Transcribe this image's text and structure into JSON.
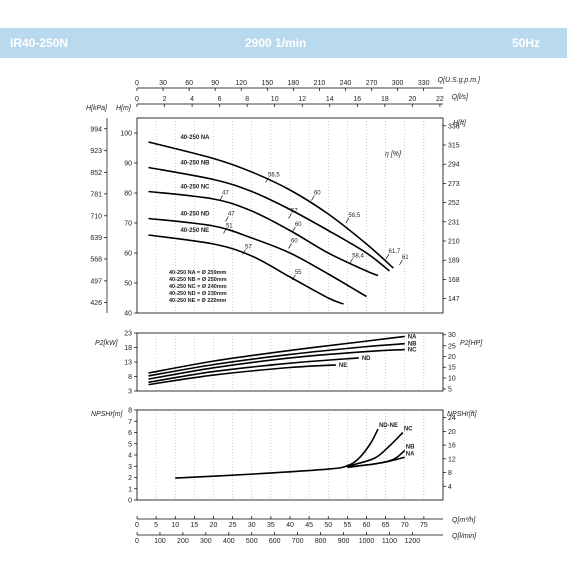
{
  "header": {
    "model": "IR40-250N",
    "speed": "2900 1/min",
    "frequency": "50Hz"
  },
  "chart_data": [
    {
      "type": "line",
      "name": "head-curves",
      "units": {
        "q_m3h": "Q[m³/h]",
        "q_lmin": "Q[l/min]",
        "q_lps": "Q[l/s]",
        "q_gpm": "Q[U.S.g.p.m.]",
        "h_m": "H[m]",
        "h_kpa": "H[kPa]",
        "h_ft": "H[ft]",
        "eta": "η [%]"
      },
      "xlim": [
        0,
        80
      ],
      "ylim": [
        40,
        105
      ],
      "top_axes": {
        "gpm": {
          "ticks": [
            "0",
            "30",
            "60",
            "90",
            "120",
            "150",
            "180",
            "210",
            "240",
            "270",
            "300",
            "330"
          ],
          "start": 0,
          "step": 30
        },
        "lps": {
          "ticks": [
            "0",
            "2",
            "4",
            "6",
            "8",
            "10",
            "12",
            "14",
            "16",
            "18",
            "20",
            "22"
          ],
          "start": 0,
          "step": 2
        }
      },
      "left_axes": {
        "m": [
          "40",
          "50",
          "60",
          "70",
          "80",
          "90",
          "100"
        ],
        "kpa": [
          {
            "label": "426",
            "m": 43.5
          },
          {
            "label": "497",
            "m": 50.7
          },
          {
            "label": "568",
            "m": 58
          },
          {
            "label": "639",
            "m": 65.2
          },
          {
            "label": "710",
            "m": 72.4
          },
          {
            "label": "781",
            "m": 79.7
          },
          {
            "label": "852",
            "m": 86.9
          },
          {
            "label": "923",
            "m": 94.1
          },
          {
            "label": "994",
            "m": 101.4
          }
        ]
      },
      "right_axis_ft": [
        {
          "label": "147",
          "m": 44.8
        },
        {
          "label": "168",
          "m": 51.2
        },
        {
          "label": "189",
          "m": 57.6
        },
        {
          "label": "210",
          "m": 64
        },
        {
          "label": "231",
          "m": 70.4
        },
        {
          "label": "252",
          "m": 76.8
        },
        {
          "label": "273",
          "m": 83.2
        },
        {
          "label": "294",
          "m": 89.6
        },
        {
          "label": "315",
          "m": 96
        },
        {
          "label": "336",
          "m": 102.4
        }
      ],
      "series": [
        {
          "name": "40-250 NA",
          "color": "#000000",
          "points": [
            [
              3,
              97
            ],
            [
              20,
              91.5
            ],
            [
              30,
              87
            ],
            [
              40,
              81
            ],
            [
              50,
              73
            ],
            [
              60,
              63
            ],
            [
              67,
              55
            ]
          ]
        },
        {
          "name": "40-250 NB",
          "color": "#000000",
          "points": [
            [
              3,
              88.5
            ],
            [
              20,
              84.5
            ],
            [
              30,
              80.5
            ],
            [
              40,
              74.5
            ],
            [
              50,
              67.5
            ],
            [
              60,
              60
            ],
            [
              66,
              54
            ]
          ]
        },
        {
          "name": "40-250 NC",
          "color": "#000000",
          "points": [
            [
              3,
              80.5
            ],
            [
              20,
              78
            ],
            [
              30,
              74
            ],
            [
              40,
              67.5
            ],
            [
              50,
              60
            ],
            [
              60,
              54
            ],
            [
              63,
              52.5
            ]
          ]
        },
        {
          "name": "40-250 ND",
          "color": "#000000",
          "points": [
            [
              3,
              71.5
            ],
            [
              20,
              69
            ],
            [
              30,
              65
            ],
            [
              40,
              60
            ],
            [
              50,
              53
            ],
            [
              58,
              47
            ],
            [
              60,
              45.5
            ]
          ]
        },
        {
          "name": "40-250 NE",
          "color": "#000000",
          "points": [
            [
              3,
              66
            ],
            [
              20,
              63
            ],
            [
              30,
              59
            ],
            [
              40,
              52
            ],
            [
              50,
              45
            ],
            [
              54,
              43
            ]
          ]
        }
      ],
      "efficiency_labels": [
        {
          "text": "47",
          "x": 22,
          "y": 79.5
        },
        {
          "text": "56,5",
          "x": 34,
          "y": 85.5
        },
        {
          "text": "60",
          "x": 46,
          "y": 79.5
        },
        {
          "text": "58,5",
          "x": 55,
          "y": 72
        },
        {
          "text": "47",
          "x": 23.5,
          "y": 72.5
        },
        {
          "text": "57",
          "x": 40,
          "y": 73.5
        },
        {
          "text": "51",
          "x": 23,
          "y": 68.5
        },
        {
          "text": "60",
          "x": 41,
          "y": 69
        },
        {
          "text": "60",
          "x": 40,
          "y": 63.5
        },
        {
          "text": "57",
          "x": 28,
          "y": 61.5
        },
        {
          "text": "58,4",
          "x": 56,
          "y": 58.5
        },
        {
          "text": "61,7",
          "x": 65.5,
          "y": 60
        },
        {
          "text": "61",
          "x": 69,
          "y": 58
        },
        {
          "text": "55",
          "x": 41,
          "y": 53
        }
      ],
      "diameter_legend": [
        "40-250 NA = Ø 259mm",
        "40-250 NB = Ø 250mm",
        "40-250 NC = Ø 240mm",
        "40-250 ND = Ø 230mm",
        "40-250 NE = Ø 220mm"
      ]
    },
    {
      "type": "line",
      "name": "power-curves",
      "units": {
        "left": "P2[kW]",
        "right": "P2[HP]"
      },
      "ylim": [
        3,
        23
      ],
      "left_ticks": [
        "3",
        "8",
        "13",
        "18",
        "23"
      ],
      "right_ticks": [
        {
          "label": "5",
          "kw": 3.7
        },
        {
          "label": "10",
          "kw": 7.5
        },
        {
          "label": "15",
          "kw": 11.2
        },
        {
          "label": "20",
          "kw": 14.9
        },
        {
          "label": "25",
          "kw": 18.6
        },
        {
          "label": "30",
          "kw": 22.4
        }
      ],
      "series": [
        {
          "name": "NA",
          "points": [
            [
              3,
              9.2
            ],
            [
              20,
              13.3
            ],
            [
              40,
              17
            ],
            [
              60,
              20.2
            ],
            [
              70,
              21.8
            ]
          ]
        },
        {
          "name": "NB",
          "points": [
            [
              3,
              8.2
            ],
            [
              20,
              12.1
            ],
            [
              40,
              15.6
            ],
            [
              60,
              18.3
            ],
            [
              70,
              19.3
            ]
          ]
        },
        {
          "name": "NC",
          "points": [
            [
              3,
              7.1
            ],
            [
              20,
              11
            ],
            [
              40,
              14.4
            ],
            [
              60,
              16.6
            ],
            [
              70,
              17.3
            ]
          ]
        },
        {
          "name": "ND",
          "points": [
            [
              3,
              6
            ],
            [
              20,
              9.7
            ],
            [
              40,
              12.6
            ],
            [
              58,
              14.4
            ]
          ]
        },
        {
          "name": "NE",
          "points": [
            [
              3,
              5.2
            ],
            [
              20,
              8.5
            ],
            [
              40,
              11.1
            ],
            [
              52,
              12
            ]
          ]
        }
      ]
    },
    {
      "type": "line",
      "name": "npsh-curves",
      "units": {
        "left": "NPSHr[m]",
        "right": "NPSHr[ft]"
      },
      "ylim": [
        0,
        8
      ],
      "left_ticks": [
        "0",
        "1",
        "2",
        "3",
        "4",
        "5",
        "6",
        "7",
        "8"
      ],
      "right_ticks": [
        {
          "label": "4",
          "m": 1.22
        },
        {
          "label": "8",
          "m": 2.44
        },
        {
          "label": "12",
          "m": 3.66
        },
        {
          "label": "16",
          "m": 4.88
        },
        {
          "label": "20",
          "m": 6.1
        },
        {
          "label": "24",
          "m": 7.32
        }
      ],
      "series": [
        {
          "name": "ND-NE",
          "points": [
            [
              10,
              1.95
            ],
            [
              30,
              2.3
            ],
            [
              50,
              2.75
            ],
            [
              55,
              3.05
            ],
            [
              58,
              3.7
            ],
            [
              61,
              5.0
            ],
            [
              63,
              6.3
            ]
          ]
        },
        {
          "name": "NC",
          "points": [
            [
              55,
              3.0
            ],
            [
              62,
              3.7
            ],
            [
              66,
              4.8
            ],
            [
              69.5,
              6.0
            ]
          ]
        },
        {
          "name": "NB",
          "points": [
            [
              55,
              2.95
            ],
            [
              62,
              3.2
            ],
            [
              67,
              3.6
            ],
            [
              70,
              4.4
            ]
          ]
        },
        {
          "name": "NA",
          "points": [
            [
              55,
              2.9
            ],
            [
              62,
              3.2
            ],
            [
              66,
              3.45
            ],
            [
              70,
              3.8
            ]
          ]
        }
      ],
      "x_axis_m3h": {
        "label": "Q[m³/h]",
        "ticks": [
          "0",
          "5",
          "10",
          "15",
          "20",
          "25",
          "30",
          "35",
          "40",
          "45",
          "50",
          "55",
          "60",
          "65",
          "70",
          "75"
        ]
      },
      "x_axis_lmin": {
        "label": "Q[l/min]",
        "ticks": [
          "0",
          "100",
          "200",
          "300",
          "400",
          "500",
          "600",
          "700",
          "800",
          "900",
          "1000",
          "1100",
          "1200"
        ]
      }
    }
  ]
}
